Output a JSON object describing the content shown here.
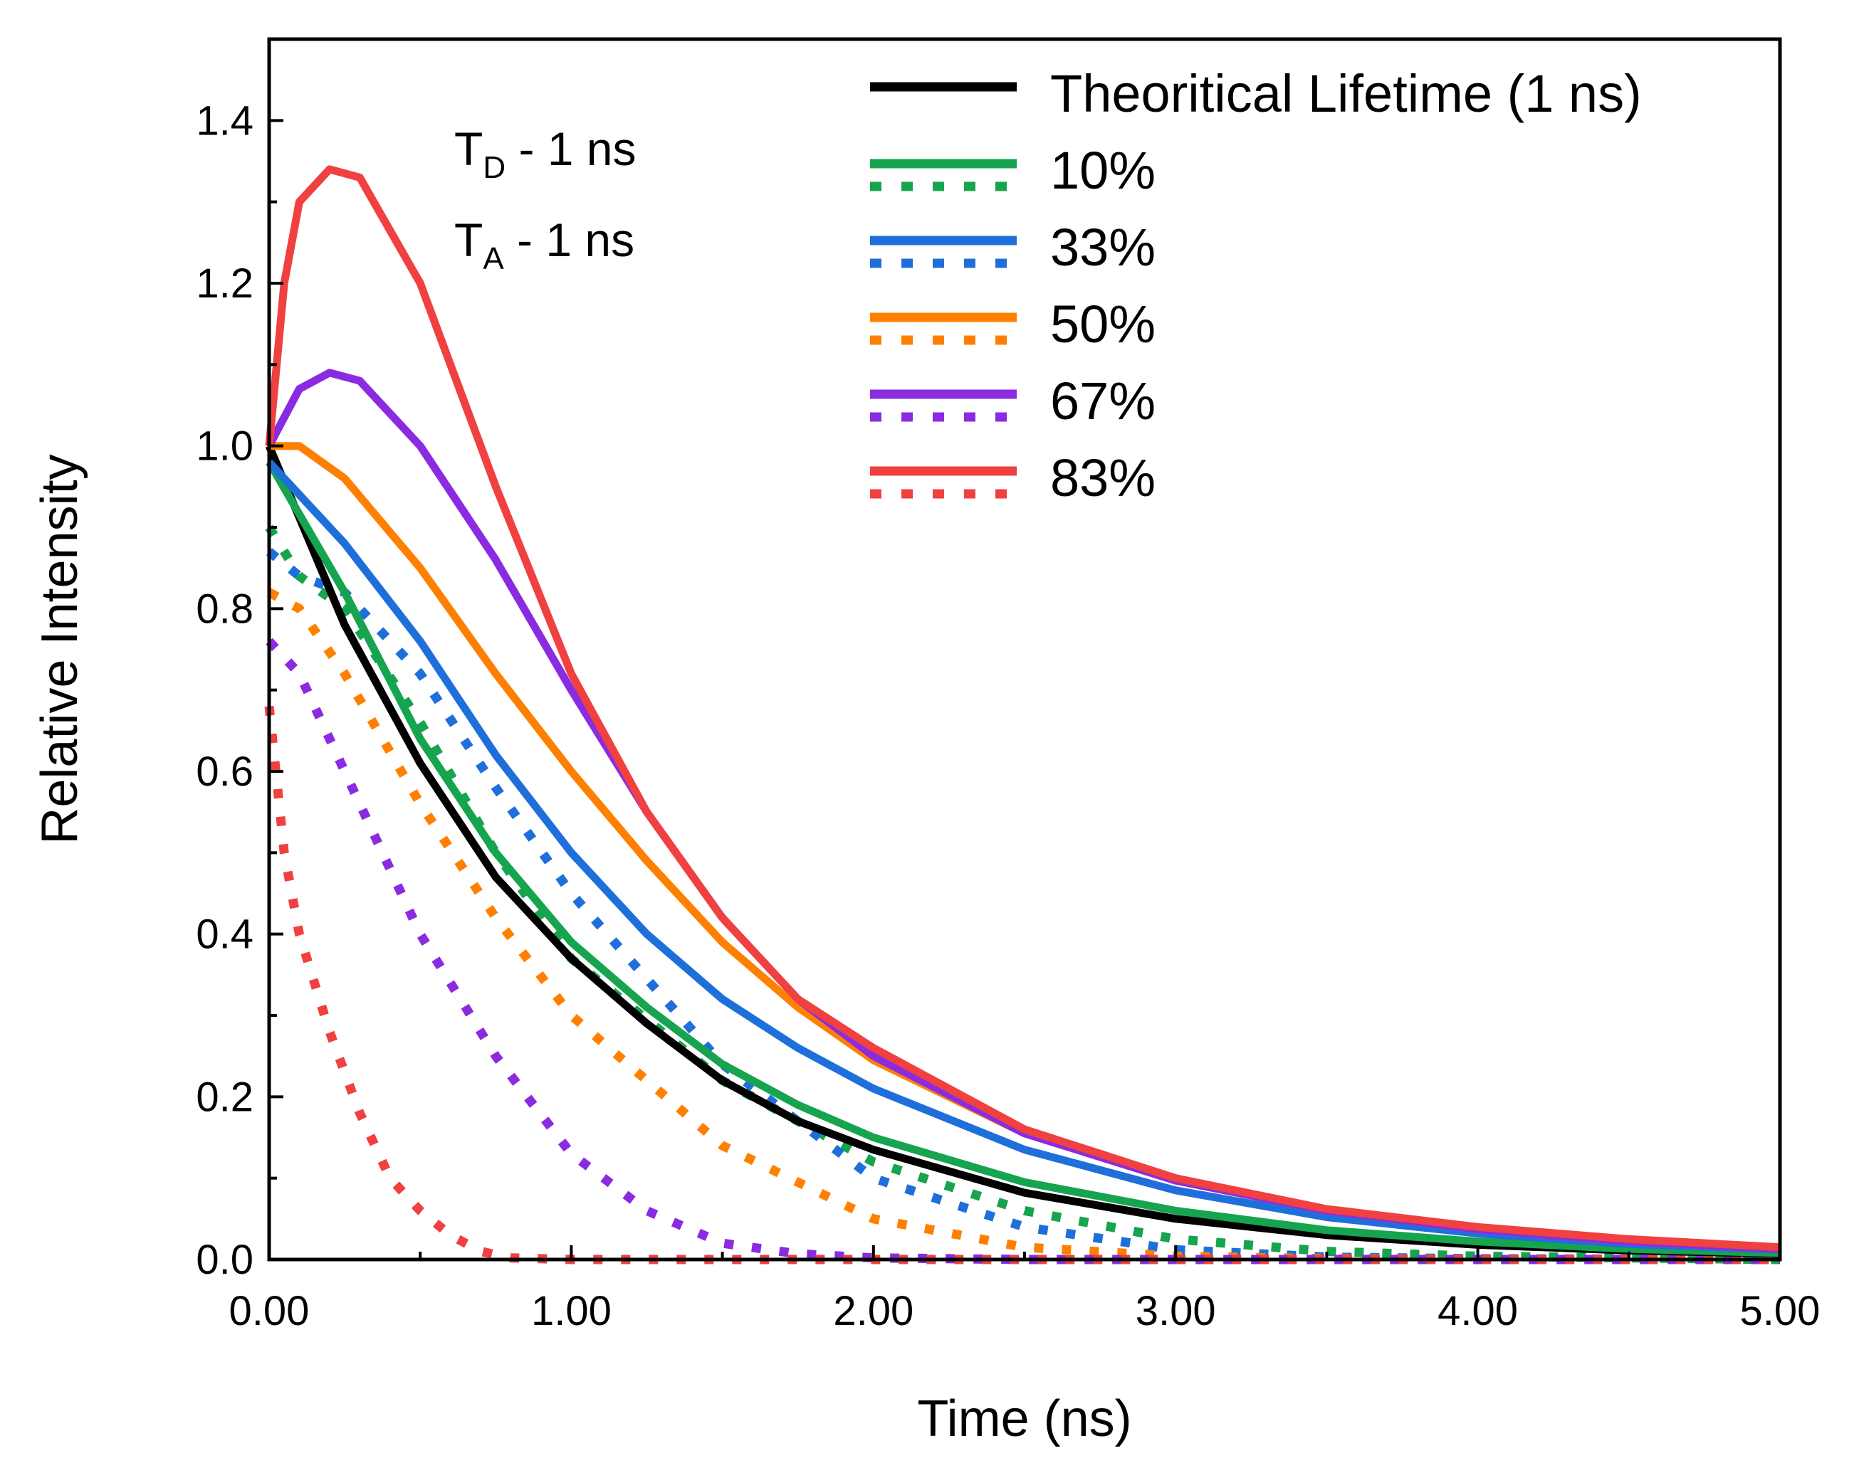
{
  "chart_data": {
    "type": "line",
    "title": "",
    "xlabel": "Time (ns)",
    "ylabel": "Relative Intensity",
    "xlim": [
      0,
      5
    ],
    "ylim": [
      0,
      1.5
    ],
    "x_ticks": [
      "0.00",
      "1.00",
      "2.00",
      "3.00",
      "4.00",
      "5.00"
    ],
    "y_ticks": [
      "0.0",
      "0.2",
      "0.4",
      "0.6",
      "0.8",
      "1.0",
      "1.2",
      "1.4"
    ],
    "legend_position": "top-right",
    "grid": false,
    "annotations": [
      {
        "main": "T",
        "sub": "D",
        "text": " - 1 ns"
      },
      {
        "main": "T",
        "sub": "A",
        "text": " - 1 ns"
      }
    ],
    "series": [
      {
        "name": "Theoritical Lifetime (1 ns)",
        "color": "#000000",
        "style": "solid",
        "x": [
          0,
          0.25,
          0.5,
          0.75,
          1.0,
          1.25,
          1.5,
          1.75,
          2.0,
          2.5,
          3.0,
          3.5,
          4.0,
          4.5,
          5.0
        ],
        "y": [
          1.0,
          0.78,
          0.61,
          0.47,
          0.37,
          0.29,
          0.22,
          0.17,
          0.135,
          0.082,
          0.05,
          0.03,
          0.018,
          0.011,
          0.007
        ]
      },
      {
        "name": "10%",
        "color": "#16a44e",
        "style": "solid",
        "x": [
          0,
          0.25,
          0.5,
          0.75,
          1.0,
          1.25,
          1.5,
          1.75,
          2.0,
          2.5,
          3.0,
          3.5,
          4.0,
          4.5,
          5.0
        ],
        "y": [
          0.98,
          0.82,
          0.64,
          0.5,
          0.39,
          0.31,
          0.24,
          0.19,
          0.15,
          0.095,
          0.06,
          0.036,
          0.022,
          0.013,
          0.008
        ]
      },
      {
        "name": "10% (dotted)",
        "color": "#16a44e",
        "style": "dotted",
        "x": [
          0,
          0.1,
          0.25,
          0.5,
          0.75,
          1.0,
          1.5,
          2.0,
          2.5,
          3.0,
          3.5,
          4.0,
          5.0
        ],
        "y": [
          0.9,
          0.84,
          0.8,
          0.66,
          0.5,
          0.37,
          0.22,
          0.12,
          0.06,
          0.025,
          0.01,
          0.004,
          0.0
        ]
      },
      {
        "name": "33%",
        "color": "#1f6fdb",
        "style": "solid",
        "x": [
          0,
          0.25,
          0.5,
          0.75,
          1.0,
          1.25,
          1.5,
          1.75,
          2.0,
          2.5,
          3.0,
          3.5,
          4.0,
          4.5,
          5.0
        ],
        "y": [
          0.98,
          0.88,
          0.76,
          0.62,
          0.5,
          0.4,
          0.32,
          0.26,
          0.21,
          0.135,
          0.085,
          0.052,
          0.032,
          0.019,
          0.012
        ]
      },
      {
        "name": "33% (dotted)",
        "color": "#1f6fdb",
        "style": "dotted",
        "x": [
          0,
          0.1,
          0.25,
          0.5,
          0.75,
          1.0,
          1.5,
          2.0,
          2.5,
          3.0,
          3.5,
          4.0,
          5.0
        ],
        "y": [
          0.87,
          0.84,
          0.82,
          0.72,
          0.58,
          0.45,
          0.24,
          0.1,
          0.04,
          0.012,
          0.003,
          0.001,
          0.0
        ]
      },
      {
        "name": "50%",
        "color": "#ff8000",
        "style": "solid",
        "x": [
          0,
          0.1,
          0.25,
          0.5,
          0.75,
          1.0,
          1.25,
          1.5,
          1.75,
          2.0,
          2.5,
          3.0,
          3.5,
          4.0,
          4.5,
          5.0
        ],
        "y": [
          1.0,
          1.0,
          0.96,
          0.85,
          0.72,
          0.6,
          0.49,
          0.39,
          0.31,
          0.245,
          0.155,
          0.097,
          0.06,
          0.037,
          0.022,
          0.013
        ]
      },
      {
        "name": "50% (dotted)",
        "color": "#ff8000",
        "style": "dotted",
        "x": [
          0,
          0.1,
          0.25,
          0.5,
          0.75,
          1.0,
          1.5,
          2.0,
          2.5,
          3.0,
          3.5,
          4.0,
          5.0
        ],
        "y": [
          0.82,
          0.8,
          0.72,
          0.56,
          0.42,
          0.3,
          0.14,
          0.05,
          0.015,
          0.004,
          0.001,
          0.0,
          0.0
        ]
      },
      {
        "name": "67%",
        "color": "#8a2be2",
        "style": "solid",
        "x": [
          0,
          0.1,
          0.2,
          0.3,
          0.5,
          0.75,
          1.0,
          1.25,
          1.5,
          1.75,
          2.0,
          2.5,
          3.0,
          3.5,
          4.0,
          4.5,
          5.0
        ],
        "y": [
          1.0,
          1.07,
          1.09,
          1.08,
          1.0,
          0.86,
          0.7,
          0.55,
          0.42,
          0.32,
          0.25,
          0.155,
          0.097,
          0.06,
          0.037,
          0.022,
          0.013
        ]
      },
      {
        "name": "67% (dotted)",
        "color": "#8a2be2",
        "style": "dotted",
        "x": [
          0,
          0.1,
          0.25,
          0.5,
          0.75,
          1.0,
          1.25,
          1.5,
          1.75,
          2.0,
          2.5,
          5.0
        ],
        "y": [
          0.76,
          0.72,
          0.6,
          0.4,
          0.25,
          0.13,
          0.06,
          0.02,
          0.007,
          0.002,
          0.0,
          0.0
        ]
      },
      {
        "name": "83%",
        "color": "#f04040",
        "style": "solid",
        "x": [
          0,
          0.05,
          0.1,
          0.2,
          0.3,
          0.5,
          0.75,
          1.0,
          1.25,
          1.5,
          1.75,
          2.0,
          2.5,
          3.0,
          3.5,
          4.0,
          4.5,
          5.0
        ],
        "y": [
          1.0,
          1.2,
          1.3,
          1.34,
          1.33,
          1.2,
          0.95,
          0.72,
          0.55,
          0.42,
          0.32,
          0.26,
          0.16,
          0.1,
          0.062,
          0.04,
          0.025,
          0.015
        ]
      },
      {
        "name": "83% (dotted)",
        "color": "#f04040",
        "style": "dotted",
        "x": [
          0,
          0.05,
          0.1,
          0.2,
          0.3,
          0.4,
          0.5,
          0.6,
          0.7,
          0.8,
          1.0,
          5.0
        ],
        "y": [
          0.68,
          0.5,
          0.4,
          0.28,
          0.18,
          0.1,
          0.06,
          0.03,
          0.01,
          0.002,
          0.0,
          0.0
        ]
      }
    ],
    "legend": [
      {
        "label": "Theoritical Lifetime (1 ns)",
        "color": "#000000",
        "dotted": false
      },
      {
        "label": "10%",
        "color": "#16a44e",
        "dotted": true
      },
      {
        "label": "33%",
        "color": "#1f6fdb",
        "dotted": true
      },
      {
        "label": "50%",
        "color": "#ff8000",
        "dotted": true
      },
      {
        "label": "67%",
        "color": "#8a2be2",
        "dotted": true
      },
      {
        "label": "83%",
        "color": "#f04040",
        "dotted": true
      }
    ]
  }
}
